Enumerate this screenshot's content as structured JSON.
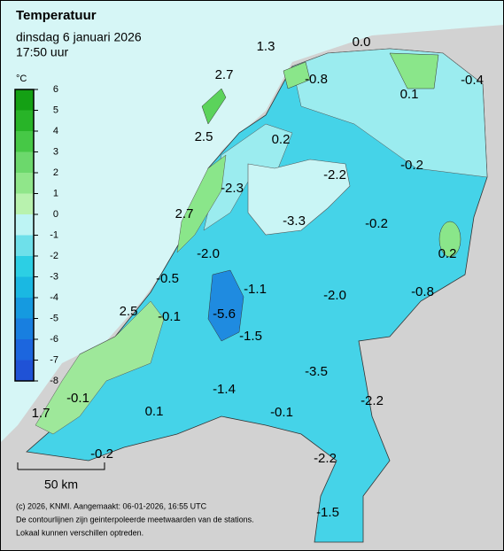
{
  "header": {
    "title": "Temperatuur",
    "date": "dinsdag 6 januari 2026",
    "time": "17:50 uur"
  },
  "legend": {
    "unit": "°C",
    "ticks": [
      6,
      5,
      4,
      3,
      2,
      1,
      0,
      -1,
      -2,
      -3,
      -4,
      -5,
      -6,
      -7,
      -8
    ],
    "colors": [
      "#14a014",
      "#28b428",
      "#46c846",
      "#6cd86c",
      "#90e68a",
      "#b8f2ae",
      "#bdf4f4",
      "#6ee0ea",
      "#2ccfe4",
      "#1ab8e2",
      "#159ae0",
      "#187fe0",
      "#1c66de",
      "#1f52d6"
    ]
  },
  "stations": {
    "values": [
      1.3,
      {
        "value": 0,
        "label": "0.0"
      },
      2.7,
      -0.8,
      0.1,
      -0.4,
      2.5,
      0.2,
      -2.2,
      -0.2,
      -2.3,
      2.7,
      -3.3,
      -0.2,
      0.2,
      {
        "value": -2,
        "label": "-2.0"
      },
      -0.5,
      -1.1,
      {
        "value": -2,
        "label": "-2.0"
      },
      -0.8,
      2.5,
      -0.1,
      -5.6,
      -1.5,
      -3.5,
      -1.4,
      -0.1,
      1.7,
      0.1,
      -0.1,
      -2.2,
      -0.2,
      -2.2,
      -1.5
    ]
  },
  "scale": {
    "label": "50 km"
  },
  "footer": {
    "lines": [
      "(c) 2026, KNMI. Aangemaakt: 06-01-2026, 16:55 UTC",
      "De contourlijnen zijn geinterpoleerde meetwaarden van de stations.",
      "Lokaal kunnen verschillen optreden."
    ]
  }
}
